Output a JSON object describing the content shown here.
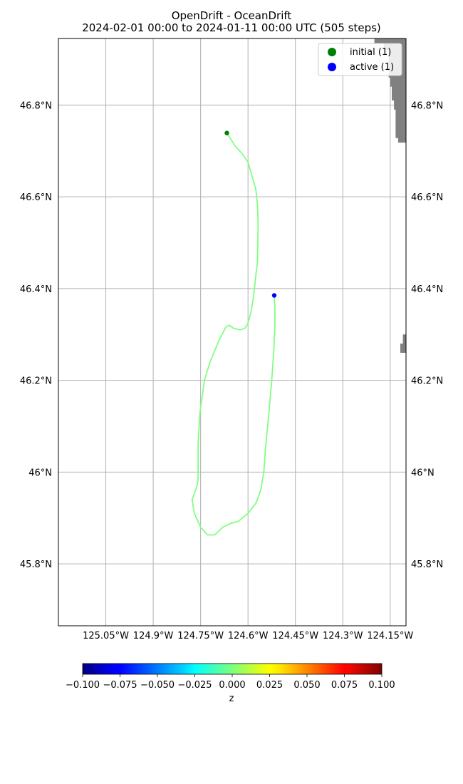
{
  "title": "OpenDrift - OceanDrift",
  "subtitle": "2024-02-01 00:00 to 2024-01-11 00:00 UTC (505 steps)",
  "map": {
    "lon_range": [
      -125.2,
      -124.1
    ],
    "lat_range": [
      45.665,
      46.945
    ],
    "lon_ticks": [
      {
        "value": -125.05,
        "label": "125.05°W"
      },
      {
        "value": -124.9,
        "label": "124.9°W"
      },
      {
        "value": -124.75,
        "label": "124.75°W"
      },
      {
        "value": -124.6,
        "label": "124.6°W"
      },
      {
        "value": -124.45,
        "label": "124.45°W"
      },
      {
        "value": -124.3,
        "label": "124.3°W"
      },
      {
        "value": -124.15,
        "label": "124.15°W"
      }
    ],
    "lat_ticks": [
      {
        "value": 46.8,
        "label": "46.8°N"
      },
      {
        "value": 46.6,
        "label": "46.6°N"
      },
      {
        "value": 46.4,
        "label": "46.4°N"
      },
      {
        "value": 46.2,
        "label": "46.2°N"
      },
      {
        "value": 46.0,
        "label": "46°N"
      },
      {
        "value": 45.8,
        "label": "45.8°N"
      }
    ],
    "grid": true,
    "land_color": "#808080",
    "trajectory_color": "#80ff80",
    "trajectory": [
      [
        -124.667,
        46.739
      ],
      [
        -124.64,
        46.71
      ],
      [
        -124.62,
        46.695
      ],
      [
        -124.6,
        46.675
      ],
      [
        -124.585,
        46.64
      ],
      [
        -124.575,
        46.615
      ],
      [
        -124.57,
        46.58
      ],
      [
        -124.568,
        46.54
      ],
      [
        -124.57,
        46.46
      ],
      [
        -124.575,
        46.43
      ],
      [
        -124.582,
        46.385
      ],
      [
        -124.59,
        46.35
      ],
      [
        -124.6,
        46.325
      ],
      [
        -124.61,
        46.313
      ],
      [
        -124.625,
        46.31
      ],
      [
        -124.645,
        46.313
      ],
      [
        -124.66,
        46.32
      ],
      [
        -124.67,
        46.316
      ],
      [
        -124.69,
        46.29
      ],
      [
        -124.72,
        46.24
      ],
      [
        -124.738,
        46.2
      ],
      [
        -124.752,
        46.13
      ],
      [
        -124.758,
        46.06
      ],
      [
        -124.758,
        45.985
      ],
      [
        -124.762,
        45.968
      ],
      [
        -124.777,
        45.94
      ],
      [
        -124.77,
        45.91
      ],
      [
        -124.75,
        45.88
      ],
      [
        -124.728,
        45.863
      ],
      [
        -124.705,
        45.863
      ],
      [
        -124.68,
        45.88
      ],
      [
        -124.655,
        45.888
      ],
      [
        -124.63,
        45.893
      ],
      [
        -124.6,
        45.91
      ],
      [
        -124.575,
        45.932
      ],
      [
        -124.56,
        45.96
      ],
      [
        -124.55,
        46.0
      ],
      [
        -124.545,
        46.05
      ],
      [
        -124.535,
        46.12
      ],
      [
        -124.525,
        46.2
      ],
      [
        -124.518,
        46.27
      ],
      [
        -124.515,
        46.32
      ],
      [
        -124.515,
        46.36
      ],
      [
        -124.517,
        46.385
      ]
    ],
    "land": [
      [
        [
          -124.2,
          46.945
        ],
        [
          -124.1,
          46.945
        ],
        [
          -124.1,
          46.718
        ],
        [
          -124.125,
          46.718
        ],
        [
          -124.125,
          46.728
        ],
        [
          -124.133,
          46.728
        ],
        [
          -124.133,
          46.79
        ],
        [
          -124.138,
          46.79
        ],
        [
          -124.138,
          46.81
        ],
        [
          -124.145,
          46.81
        ],
        [
          -124.145,
          46.84
        ],
        [
          -124.15,
          46.84
        ],
        [
          -124.15,
          46.86
        ],
        [
          -124.155,
          46.86
        ],
        [
          -124.155,
          46.92
        ],
        [
          -124.17,
          46.92
        ],
        [
          -124.17,
          46.935
        ],
        [
          -124.2,
          46.935
        ]
      ],
      [
        [
          -124.11,
          46.3
        ],
        [
          -124.1,
          46.3
        ],
        [
          -124.1,
          46.26
        ],
        [
          -124.118,
          46.26
        ],
        [
          -124.118,
          46.28
        ],
        [
          -124.11,
          46.28
        ]
      ]
    ],
    "markers": [
      {
        "name": "initial",
        "lon": -124.667,
        "lat": 46.739,
        "color": "#008000"
      },
      {
        "name": "active",
        "lon": -124.517,
        "lat": 46.385,
        "color": "#0000ff"
      }
    ]
  },
  "legend": {
    "items": [
      {
        "label": "initial (1)",
        "color": "#008000"
      },
      {
        "label": "active (1)",
        "color": "#0000ff"
      }
    ]
  },
  "colorbar": {
    "label": "z",
    "range": [
      -0.1,
      0.1
    ],
    "ticks": [
      "−0.100",
      "−0.075",
      "−0.050",
      "−0.025",
      "0.000",
      "0.025",
      "0.050",
      "0.075",
      "0.100"
    ]
  }
}
